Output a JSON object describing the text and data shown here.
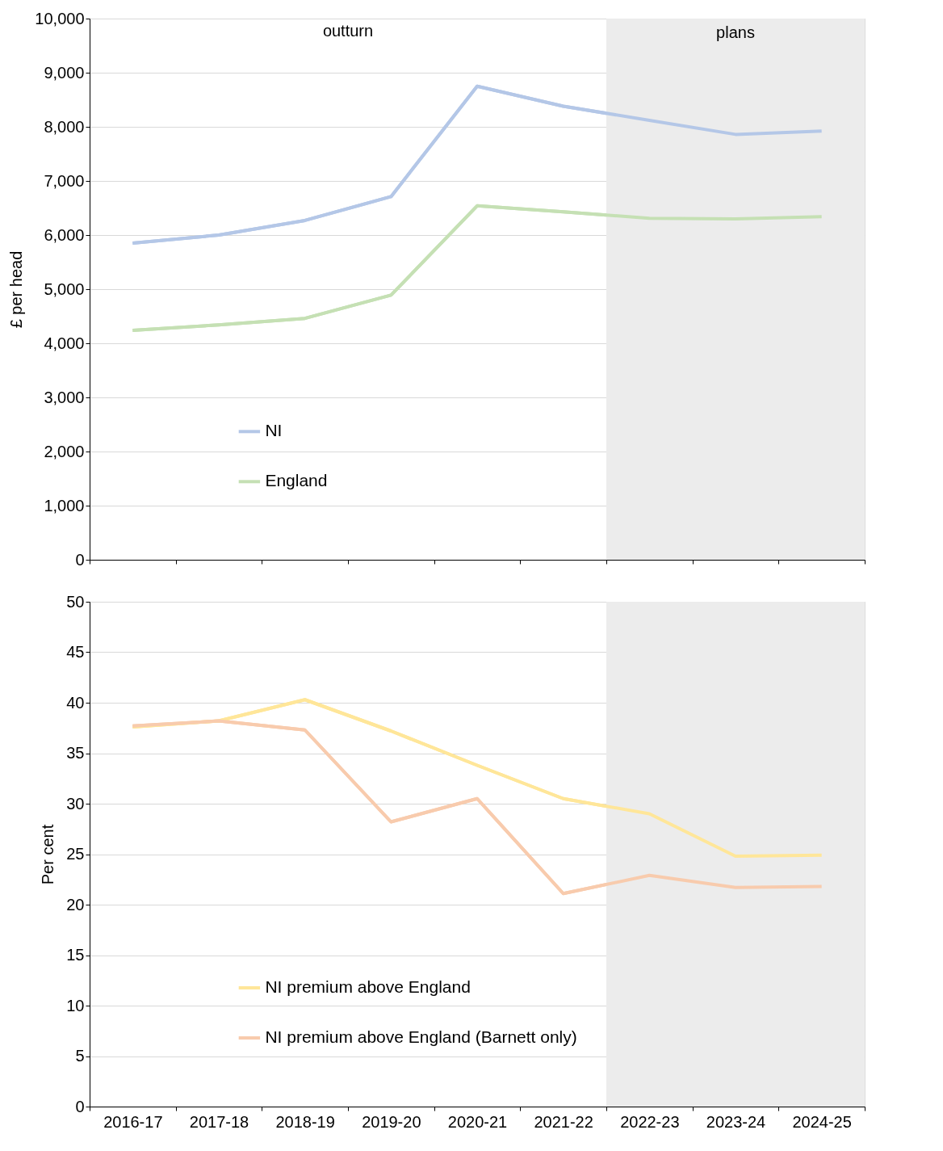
{
  "chart_data": [
    {
      "type": "line",
      "ylabel": "£ per head",
      "categories": [
        "2016-17",
        "2017-18",
        "2018-19",
        "2019-20",
        "2020-21",
        "2021-22",
        "2022-23",
        "2023-24",
        "2024-25"
      ],
      "series": [
        {
          "name": "NI",
          "color": "#b4c7e7",
          "values": [
            5850,
            6000,
            6270,
            6710,
            8750,
            8380,
            8120,
            7860,
            7920
          ]
        },
        {
          "name": "England",
          "color": "#c5e0b4",
          "values": [
            4240,
            4340,
            4460,
            4890,
            6540,
            6430,
            6310,
            6300,
            6340
          ]
        }
      ],
      "ylim": [
        0,
        10000
      ],
      "yticks": [
        {
          "value": 0,
          "label": "0"
        },
        {
          "value": 1000,
          "label": "1,000"
        },
        {
          "value": 2000,
          "label": "2,000"
        },
        {
          "value": 3000,
          "label": "3,000"
        },
        {
          "value": 4000,
          "label": "4,000"
        },
        {
          "value": 5000,
          "label": "5,000"
        },
        {
          "value": 6000,
          "label": "6,000"
        },
        {
          "value": 7000,
          "label": "7,000"
        },
        {
          "value": 8000,
          "label": "8,000"
        },
        {
          "value": 9000,
          "label": "9,000"
        },
        {
          "value": 10000,
          "label": "10,000"
        }
      ],
      "bands": [
        {
          "axis": "x",
          "from": "2022-23",
          "to": "2024-25",
          "color": "#ececec",
          "label": "plans"
        }
      ],
      "annotations": [
        "outturn"
      ],
      "grid": "y",
      "legend": "bottom left",
      "tick_labels": "y",
      "line_style": "solid",
      "marker": "none"
    },
    {
      "type": "line",
      "ylabel": "Per cent",
      "categories": [
        "2016-17",
        "2017-18",
        "2018-19",
        "2019-20",
        "2020-21",
        "2021-22",
        "2022-23",
        "2023-24",
        "2024-25"
      ],
      "series": [
        {
          "name": "NI premium above England",
          "color": "#ffe699",
          "values": [
            37.6,
            38.2,
            40.3,
            37.2,
            33.8,
            30.5,
            29.0,
            24.8,
            24.9
          ]
        },
        {
          "name": "NI premium above England (Barnett only)",
          "color": "#f8cbad",
          "values": [
            37.7,
            38.2,
            37.3,
            28.2,
            30.5,
            21.1,
            22.9,
            21.7,
            21.8
          ]
        }
      ],
      "ylim": [
        0,
        50
      ],
      "yticks": [
        0,
        5,
        10,
        15,
        20,
        25,
        30,
        35,
        40,
        45,
        50
      ],
      "bands": [
        {
          "axis": "x",
          "from": "2022-23",
          "to": "2024-25",
          "color": "#ececec"
        }
      ],
      "grid": "y",
      "legend": "bottom left",
      "line_style": "solid",
      "marker": "none"
    }
  ]
}
